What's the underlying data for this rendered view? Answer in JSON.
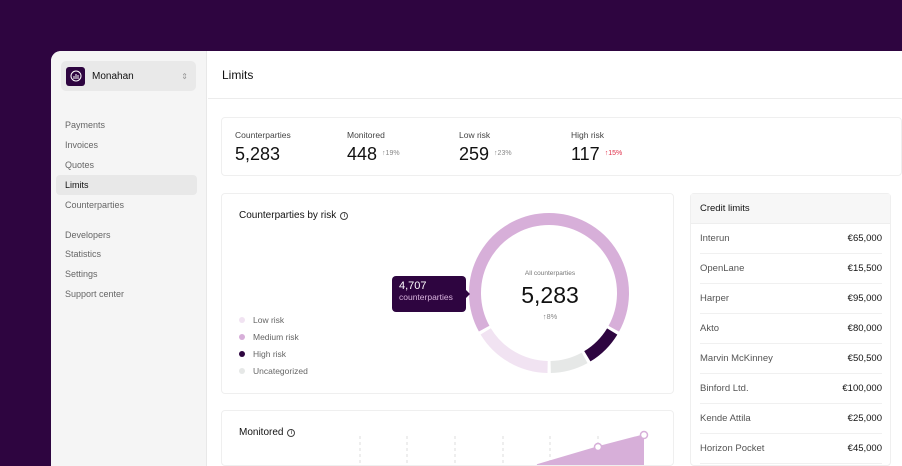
{
  "sidebar": {
    "org": "Monahan",
    "items": [
      {
        "label": "Payments"
      },
      {
        "label": "Invoices"
      },
      {
        "label": "Quotes"
      },
      {
        "label": "Limits",
        "active": true
      },
      {
        "label": "Counterparties"
      },
      {
        "label": "Developers"
      },
      {
        "label": "Statistics"
      },
      {
        "label": "Settings"
      },
      {
        "label": "Support center"
      }
    ]
  },
  "header": {
    "title": "Limits"
  },
  "stats": [
    {
      "label": "Counterparties",
      "value": "5,283",
      "change": ""
    },
    {
      "label": "Monitored",
      "value": "448",
      "change": "↑19%"
    },
    {
      "label": "Low risk",
      "value": "259",
      "change": "↑23%"
    },
    {
      "label": "High risk",
      "value": "117",
      "change": "↑15%",
      "change_color": "#e0304a"
    }
  ],
  "risk_card": {
    "title": "Counterparties by risk",
    "tooltip": {
      "value": "4,707",
      "label": "counterparties"
    },
    "center": {
      "label": "All counterparties",
      "value": "5,283",
      "change": "↑8%"
    },
    "legend": [
      {
        "label": "Low risk",
        "color": "#f1e3f2"
      },
      {
        "label": "Medium risk",
        "color": "#d7afd9"
      },
      {
        "label": "High risk",
        "color": "#2e0540"
      },
      {
        "label": "Uncategorized",
        "color": "#e6e8e7"
      }
    ]
  },
  "chart_data": {
    "type": "pie",
    "donut": true,
    "segments": [
      {
        "label": "Medium risk",
        "share": 0.667,
        "color": "#d7afd9"
      },
      {
        "label": "High risk",
        "share": 0.083,
        "color": "#2e0540"
      },
      {
        "label": "Uncategorized",
        "share": 0.083,
        "color": "#e6e8e7"
      },
      {
        "label": "Low risk",
        "share": 0.167,
        "color": "#f1e3f2"
      }
    ]
  },
  "monitored": {
    "title": "Monitored"
  },
  "credit_limits": {
    "title": "Credit limits",
    "rows": [
      {
        "name": "Interun",
        "amount": "€65,000"
      },
      {
        "name": "OpenLane",
        "amount": "€15,500"
      },
      {
        "name": "Harper",
        "amount": "€95,000"
      },
      {
        "name": "Akto",
        "amount": "€80,000"
      },
      {
        "name": "Marvin McKinney",
        "amount": "€50,500"
      },
      {
        "name": "Binford Ltd.",
        "amount": "€100,000"
      },
      {
        "name": "Kende Attila",
        "amount": "€25,000"
      },
      {
        "name": "Horizon Pocket",
        "amount": "€45,000"
      }
    ]
  }
}
